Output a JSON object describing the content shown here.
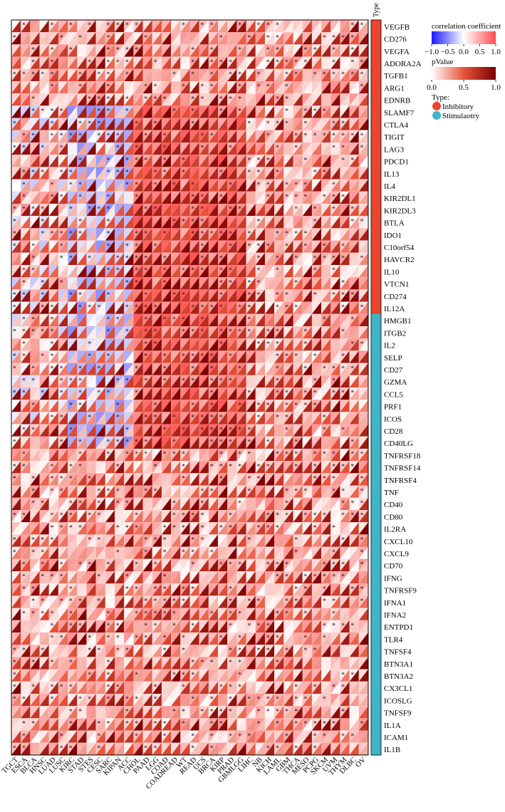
{
  "chart_data": {
    "type": "heatmap",
    "title": "",
    "cancer_types": [
      "TGCT",
      "ESCA",
      "BLCA",
      "HNSC",
      "LUAD",
      "LUSC",
      "KIRC",
      "STAD",
      "STES",
      "CESC",
      "SARC",
      "KIPAN",
      "ACC",
      "CHOL",
      "PAAD",
      "LGG",
      "COAD",
      "COADREAD",
      "WT",
      "READ",
      "UCS",
      "BRCA",
      "KIRP",
      "PRAD",
      "GBMLGG",
      "LIHC",
      "NB",
      "KICH",
      "LAML",
      "GBM",
      "THCA",
      "MESO",
      "PCPG",
      "SKCM",
      "UVM",
      "THYM",
      "DLBC",
      "OV"
    ],
    "genes": [
      "VEGFB",
      "CD276",
      "VEGFA",
      "ADORA2A",
      "TGFB1",
      "ARG1",
      "EDNRB",
      "SLAMF7",
      "CTLA4",
      "TIGIT",
      "LAG3",
      "PDCD1",
      "IL13",
      "IL4",
      "KIR2DL1",
      "KIR2DL3",
      "BTLA",
      "IDO1",
      "C10orf54",
      "HAVCR2",
      "IL10",
      "VTCN1",
      "CD274",
      "IL12A",
      "HMGB1",
      "ITGB2",
      "IL2",
      "SELP",
      "CD27",
      "GZMA",
      "CCL5",
      "PRF1",
      "ICOS",
      "CD28",
      "CD40LG",
      "TNFRSF18",
      "TNFRSF14",
      "TNFRSF4",
      "TNF",
      "CD40",
      "CD80",
      "IL2RA",
      "CXCL10",
      "CXCL9",
      "CD70",
      "IFNG",
      "TNFRSF9",
      "IFNA1",
      "IFNA2",
      "ENTPD1",
      "TLR4",
      "TNFSF4",
      "BTN3A1",
      "BTN3A2",
      "CX3CL1",
      "ICOSLG",
      "TNFSF9",
      "IL1A",
      "ICAM1",
      "IL1B"
    ],
    "gene_types": [
      "Inhibitory",
      "Inhibitory",
      "Inhibitory",
      "Inhibitory",
      "Inhibitory",
      "Inhibitory",
      "Inhibitory",
      "Inhibitory",
      "Inhibitory",
      "Inhibitory",
      "Inhibitory",
      "Inhibitory",
      "Inhibitory",
      "Inhibitory",
      "Inhibitory",
      "Inhibitory",
      "Inhibitory",
      "Inhibitory",
      "Inhibitory",
      "Inhibitory",
      "Inhibitory",
      "Inhibitory",
      "Inhibitory",
      "Inhibitory",
      "Stimulaotry",
      "Stimulaotry",
      "Stimulaotry",
      "Stimulaotry",
      "Stimulaotry",
      "Stimulaotry",
      "Stimulaotry",
      "Stimulaotry",
      "Stimulaotry",
      "Stimulaotry",
      "Stimulaotry",
      "Stimulaotry",
      "Stimulaotry",
      "Stimulaotry",
      "Stimulaotry",
      "Stimulaotry",
      "Stimulaotry",
      "Stimulaotry",
      "Stimulaotry",
      "Stimulaotry",
      "Stimulaotry",
      "Stimulaotry",
      "Stimulaotry",
      "Stimulaotry",
      "Stimulaotry",
      "Stimulaotry",
      "Stimulaotry",
      "Stimulaotry",
      "Stimulaotry",
      "Stimulaotry",
      "Stimulaotry",
      "Stimulaotry",
      "Stimulaotry",
      "Stimulaotry",
      "Stimulaotry",
      "Stimulaotry"
    ],
    "type_header": "Type",
    "significance_mark": "*",
    "legend": {
      "correlation": {
        "title": "correlation coefficient",
        "ticks": [
          "−1.0",
          "−0.5",
          "0.0",
          "0.5",
          "1.0"
        ],
        "range": [
          -1,
          1
        ],
        "colors": [
          "#1a1aff",
          "#ffffff",
          "#ff4d4d"
        ]
      },
      "pvalue": {
        "title": "pValue",
        "ticks": [
          "0.0",
          "0.5",
          "1.0"
        ],
        "range": [
          0,
          1
        ],
        "colors": [
          "#ffffff",
          "#e8533a",
          "#7a0000"
        ]
      },
      "type": {
        "title": "Type:",
        "items": [
          {
            "label": "Inhibitory",
            "color": "#e8462f"
          },
          {
            "label": "Stimulaotry",
            "color": "#41b4c8"
          }
        ]
      }
    },
    "correlation_pattern": {
      "note_negative_region_columns": [
        6,
        12
      ],
      "note_negative_region_rows": [
        7,
        34
      ]
    }
  }
}
